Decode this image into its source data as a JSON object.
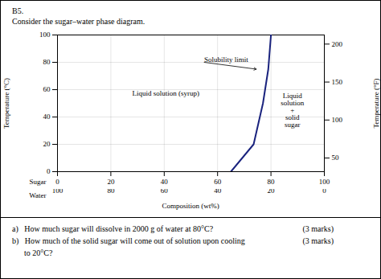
{
  "chart_data": {
    "type": "line",
    "title": "B5.",
    "subtitle": "Consider the sugar–water phase diagram.",
    "x": [
      65,
      73.5,
      77,
      79,
      80
    ],
    "values": [
      0,
      20,
      50,
      75,
      100
    ],
    "color": "#1a237e",
    "xlim": [
      0,
      100
    ],
    "xticks": [
      0,
      20,
      40,
      60,
      80,
      100
    ],
    "xrow_label": "Sugar",
    "x2lim": [
      100,
      0
    ],
    "x2ticks": [
      100,
      80,
      60,
      40,
      20,
      0
    ],
    "x2row_label": "Water",
    "xlabel": "Composition (wt%)",
    "ylim": [
      0,
      100
    ],
    "yticks": [
      0,
      20,
      40,
      60,
      80,
      100
    ],
    "ylabel": "Temperature (°C)",
    "y2lim": [
      32,
      212
    ],
    "y2ticks": [
      50,
      100,
      150,
      200
    ],
    "y2label": "Temperature (°F)",
    "grid": true,
    "annotations": [
      {
        "text": "Liquid solution (syrup)",
        "x": 28,
        "y": 57
      },
      {
        "text": "Solubility limit",
        "x": 55,
        "y": 80,
        "arrow_x": 74.5,
        "arrow_y": 75
      },
      {
        "text": "Liquid\nsolution\n+\nsolid\nsugar",
        "x": 88,
        "y": 45
      }
    ],
    "questions": [
      {
        "text": "a)   How much sugar will dissolve in 2000 g of water at 80°C?",
        "marks": "(3 marks)"
      },
      {
        "text": "b)   How much of the solid sugar will come out of solution upon cooling",
        "marks": "(3 marks)"
      },
      {
        "text": "      to 20°C?"
      }
    ]
  }
}
